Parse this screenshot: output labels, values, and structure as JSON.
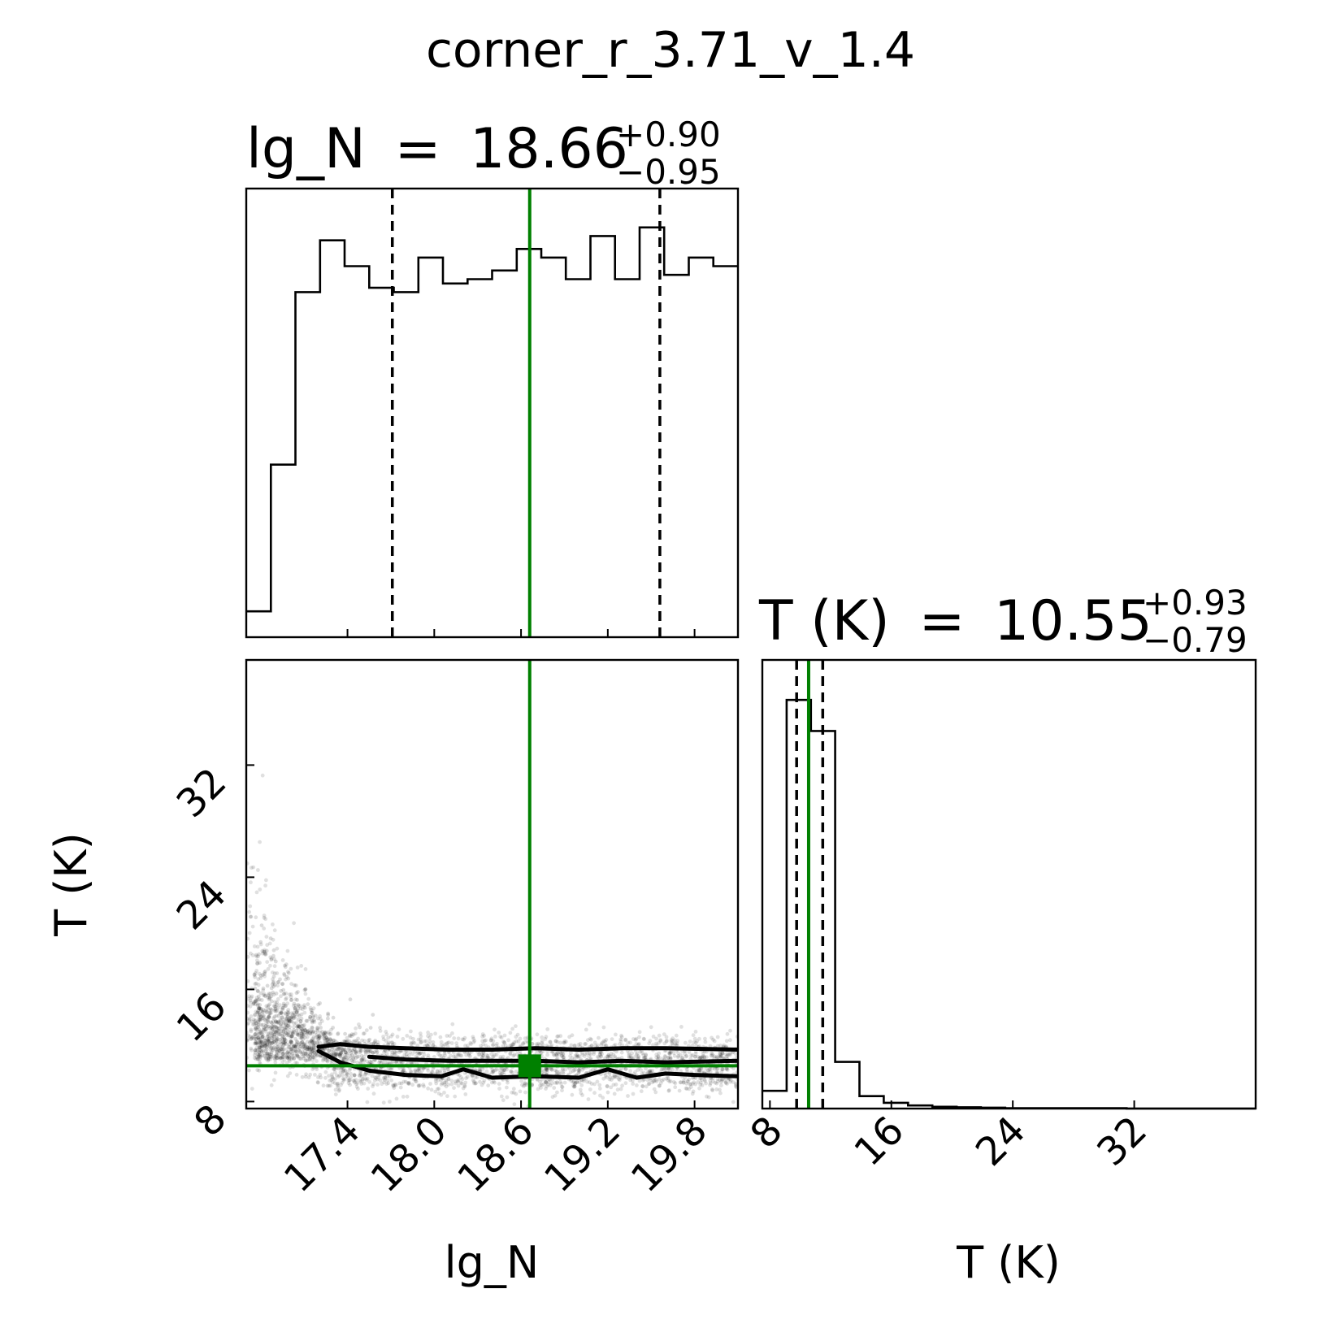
{
  "figure": {
    "title": "corner_r_3.71_v_1.4",
    "colors": {
      "truth": "#008000",
      "ink": "#000000",
      "background": "#ffffff"
    }
  },
  "chart_data": [
    {
      "type": "histogram",
      "panel": "lg_N marginal",
      "title_parts": {
        "name": "lg_N",
        "equals": "=",
        "median": "18.66",
        "upper": "+0.90",
        "lower": "−0.95"
      },
      "xlim": [
        16.7,
        20.1
      ],
      "bin_edges": [
        16.7,
        16.87,
        17.04,
        17.21,
        17.38,
        17.55,
        17.72,
        17.89,
        18.06,
        18.23,
        18.4,
        18.57,
        18.74,
        18.91,
        19.08,
        19.25,
        19.42,
        19.59,
        19.76,
        19.93,
        20.1
      ],
      "counts": [
        30,
        200,
        400,
        460,
        430,
        405,
        400,
        440,
        410,
        415,
        425,
        450,
        440,
        415,
        465,
        415,
        475,
        420,
        440,
        430
      ],
      "ylim": [
        0,
        520
      ],
      "median": 18.66,
      "quantiles": [
        17.71,
        19.56
      ],
      "truth": 18.66,
      "xticks": [
        17.4,
        18.0,
        18.6,
        19.2,
        19.8
      ],
      "grid": false
    },
    {
      "type": "scatter",
      "panel": "lg_N vs T (K) 2D posterior",
      "xlabel": "lg_N",
      "ylabel": "T (K)",
      "xlim": [
        16.7,
        20.1
      ],
      "ylim": [
        7.5,
        39.5
      ],
      "xticks": [
        "17.4",
        "18.0",
        "18.6",
        "19.2",
        "19.8"
      ],
      "yticks": [
        "8",
        "16",
        "24",
        "32"
      ],
      "truth": {
        "x": 18.66,
        "y": 10.55
      },
      "contours": [
        {
          "x": [
            17.2,
            17.35,
            17.55,
            17.8,
            18.1,
            18.4,
            18.7,
            19.0,
            19.3,
            19.6,
            20.1
          ],
          "y": [
            11.9,
            12.1,
            11.9,
            11.8,
            11.7,
            11.7,
            11.8,
            11.7,
            11.8,
            11.8,
            11.7
          ]
        },
        {
          "x": [
            17.2,
            17.35,
            17.55,
            17.8,
            18.05,
            18.2,
            18.4,
            18.7,
            19.0,
            19.2,
            19.4,
            19.6,
            19.8,
            20.1
          ],
          "y": [
            11.6,
            10.8,
            10.2,
            9.9,
            9.8,
            10.3,
            9.7,
            9.8,
            9.7,
            10.3,
            9.7,
            10.0,
            9.9,
            9.8
          ]
        },
        {
          "x": [
            17.55,
            17.8,
            18.1,
            18.4,
            18.7,
            19.0,
            19.3,
            19.6,
            20.1
          ],
          "y": [
            11.2,
            11.0,
            10.9,
            10.9,
            10.9,
            10.8,
            10.9,
            10.8,
            10.9
          ]
        }
      ],
      "point_density": {
        "core_band_T": [
          9.2,
          12.3
        ],
        "low_lgN_tail_T_max": 37.5
      },
      "grid": false
    },
    {
      "type": "histogram",
      "panel": "T (K) marginal",
      "xlabel": "T (K)",
      "title_parts": {
        "name": "T (K)",
        "equals": "=",
        "median": "10.55",
        "upper": "+0.93",
        "lower": "−0.79"
      },
      "xlim": [
        7.5,
        40.0
      ],
      "bin_edges": [
        7.5,
        9.1,
        10.7,
        12.3,
        13.9,
        15.5,
        17.1,
        18.7,
        20.3,
        21.9,
        23.5,
        25.1,
        26.7,
        28.3,
        29.9,
        31.5,
        33.1,
        34.7,
        36.3,
        37.9,
        40.0
      ],
      "counts": [
        40,
        920,
        850,
        105,
        28,
        13,
        7,
        4,
        3,
        2,
        1,
        1,
        1,
        1,
        1,
        0,
        0,
        0,
        0,
        0
      ],
      "ylim": [
        0,
        1010
      ],
      "median": 10.55,
      "quantiles": [
        9.76,
        11.48
      ],
      "truth": 10.55,
      "xticks": [
        "8",
        "16",
        "24",
        "32"
      ],
      "grid": false
    }
  ]
}
